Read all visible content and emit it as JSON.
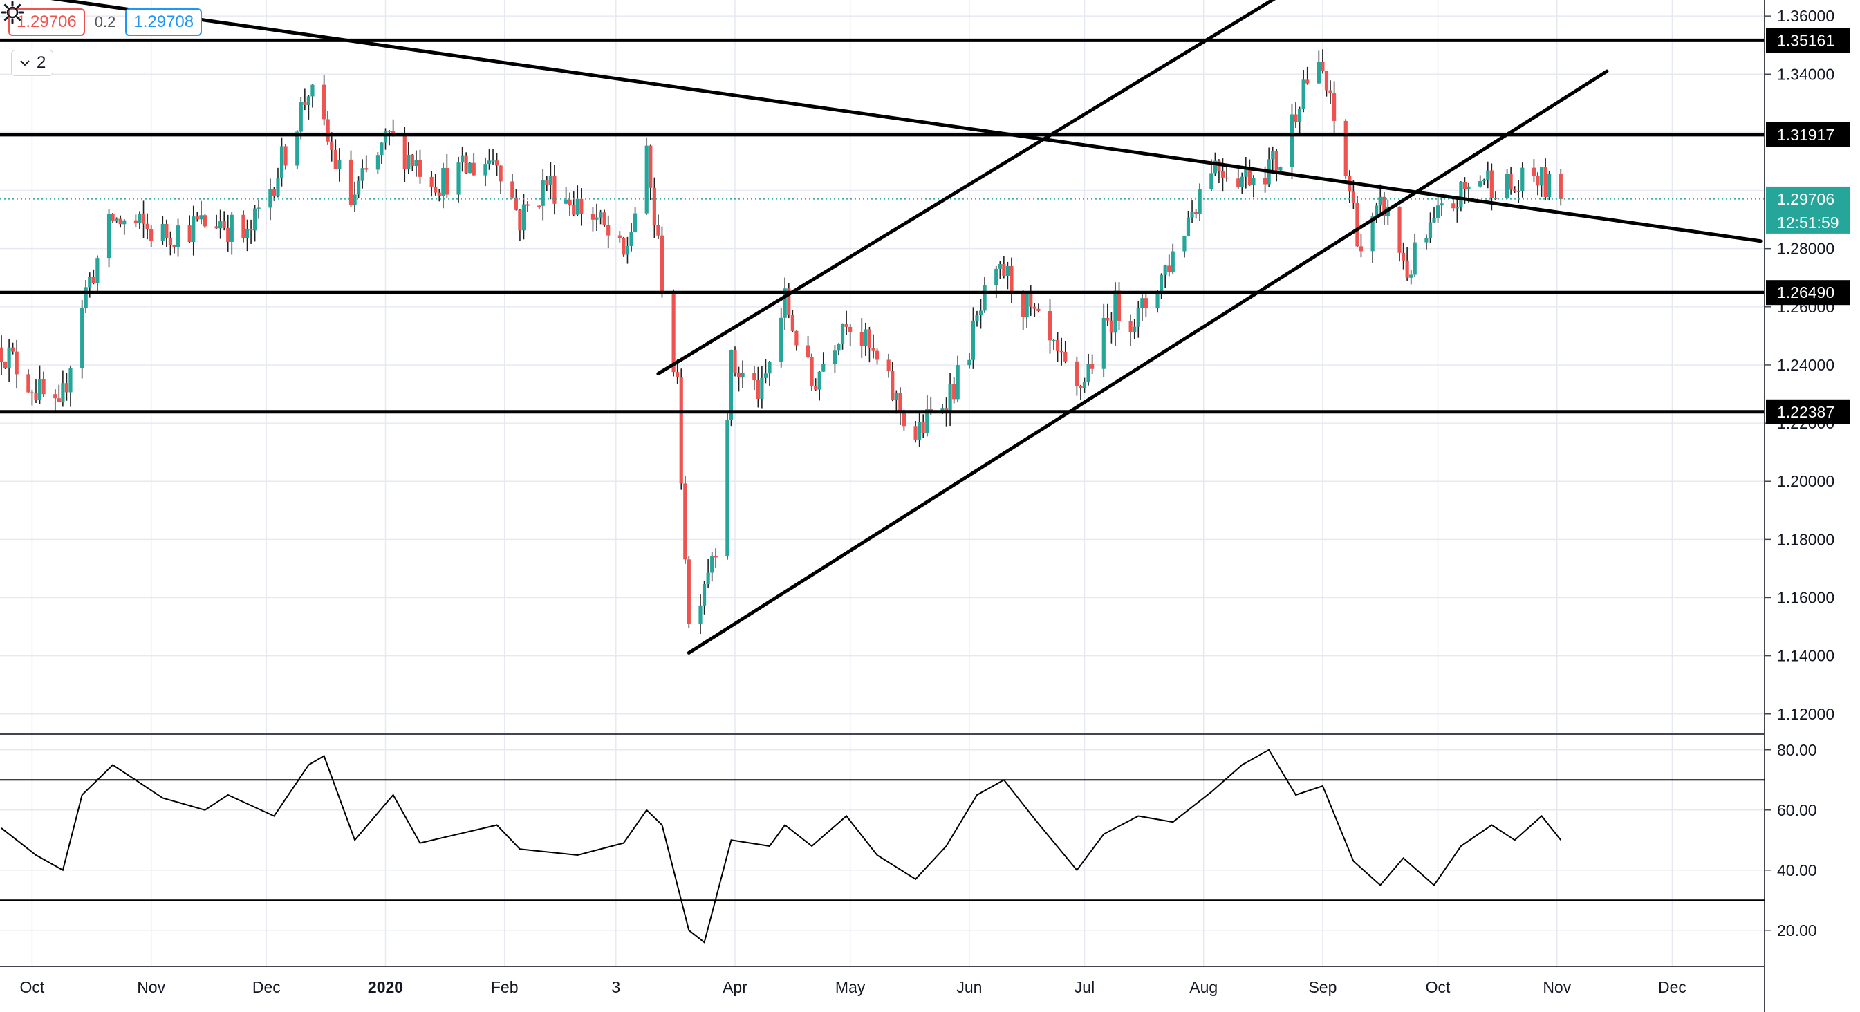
{
  "quote": {
    "bid": "1.29706",
    "spread": "0.2",
    "ask": "1.29708"
  },
  "indicator_toggle": {
    "label": "2"
  },
  "colors": {
    "up": "#26a69a",
    "down": "#ef5350",
    "line": "#000000",
    "grid": "#e6eaf0",
    "axis_text": "#131722",
    "current_price_bg": "#26a69a"
  },
  "icons": {
    "collapse": "chevron-down-icon",
    "settings": "gear-icon"
  },
  "chart_data": [
    {
      "type": "candlestick",
      "title": "",
      "x_labels": [
        "Oct",
        "Nov",
        "Dec",
        "2020",
        "Feb",
        "3",
        "Apr",
        "May",
        "Jun",
        "Jul",
        "Aug",
        "Sep",
        "Oct",
        "Nov",
        "Dec"
      ],
      "y_ticks": [
        "1.36000",
        "1.34000",
        "1.28000",
        "1.26000",
        "1.24000",
        "1.22000",
        "1.20000",
        "1.18000",
        "1.16000",
        "1.14000",
        "1.12000"
      ],
      "ylim": [
        1.114,
        1.3655
      ],
      "last_price": 1.29706,
      "countdown": "12:51:59",
      "horizontal_levels": [
        {
          "label": "1.35161",
          "value": 1.35161
        },
        {
          "label": "1.31917",
          "value": 1.31917
        },
        {
          "label": "1.26490",
          "value": 1.2649
        },
        {
          "label": "1.22387",
          "value": 1.22387
        }
      ],
      "trendlines": [
        {
          "name": "descending-trendline",
          "points": [
            [
              "2019-09-15",
              1.37
            ],
            [
              "2020-12-24",
              1.2826
            ]
          ]
        },
        {
          "name": "channel-lower-line",
          "points": [
            [
              "2020-03-20",
              1.141
            ],
            [
              "2020-11-14",
              1.341
            ]
          ]
        },
        {
          "name": "channel-upper-line",
          "points": [
            [
              "2020-03-12",
              1.237
            ],
            [
              "2020-08-22",
              1.368
            ]
          ]
        }
      ],
      "anchors": [
        [
          "2019-09-23",
          1.246
        ],
        [
          "2019-10-08",
          1.222
        ],
        [
          "2019-10-14",
          1.262
        ],
        [
          "2019-10-22",
          1.29
        ],
        [
          "2019-11-04",
          1.285
        ],
        [
          "2019-11-19",
          1.29
        ],
        [
          "2019-11-26",
          1.283
        ],
        [
          "2019-12-05",
          1.31
        ],
        [
          "2019-12-12",
          1.335
        ],
        [
          "2019-12-16",
          1.32
        ],
        [
          "2019-12-23",
          1.296
        ],
        [
          "2020-01-02",
          1.318
        ],
        [
          "2020-01-15",
          1.303
        ],
        [
          "2020-01-30",
          1.312
        ],
        [
          "2020-02-05",
          1.29
        ],
        [
          "2020-02-12",
          1.303
        ],
        [
          "2020-02-25",
          1.29
        ],
        [
          "2020-03-03",
          1.276
        ],
        [
          "2020-03-09",
          1.31
        ],
        [
          "2020-03-13",
          1.27
        ],
        [
          "2020-03-17",
          1.23
        ],
        [
          "2020-03-20",
          1.15
        ],
        [
          "2020-03-27",
          1.18
        ],
        [
          "2020-03-31",
          1.24
        ],
        [
          "2020-04-08",
          1.23
        ],
        [
          "2020-04-14",
          1.262
        ],
        [
          "2020-04-21",
          1.233
        ],
        [
          "2020-04-30",
          1.258
        ],
        [
          "2020-05-08",
          1.24
        ],
        [
          "2020-05-18",
          1.215
        ],
        [
          "2020-05-29",
          1.235
        ],
        [
          "2020-06-05",
          1.262
        ],
        [
          "2020-06-10",
          1.272
        ],
        [
          "2020-06-18",
          1.255
        ],
        [
          "2020-06-29",
          1.23
        ],
        [
          "2020-07-09",
          1.26
        ],
        [
          "2020-07-15",
          1.256
        ],
        [
          "2020-07-24",
          1.278
        ],
        [
          "2020-08-03",
          1.31
        ],
        [
          "2020-08-11",
          1.305
        ],
        [
          "2020-08-21",
          1.31
        ],
        [
          "2020-08-27",
          1.338
        ],
        [
          "2020-09-01",
          1.34
        ],
        [
          "2020-09-08",
          1.3
        ],
        [
          "2020-09-11",
          1.28
        ],
        [
          "2020-09-17",
          1.295
        ],
        [
          "2020-09-23",
          1.272
        ],
        [
          "2020-10-01",
          1.29
        ],
        [
          "2020-10-12",
          1.305
        ],
        [
          "2020-10-21",
          1.3
        ],
        [
          "2020-10-26",
          1.305
        ],
        [
          "2020-11-02",
          1.297
        ]
      ],
      "date_range": [
        "2019-09-23",
        "2020-11-02"
      ]
    },
    {
      "type": "line",
      "title": "",
      "y_ticks": [
        "80.00",
        "60.00",
        "40.00",
        "20.00"
      ],
      "ylim": [
        8,
        85
      ],
      "levels": [
        70,
        30
      ],
      "x": [
        "2019-09-23",
        "2019-10-02",
        "2019-10-09",
        "2019-10-14",
        "2019-10-22",
        "2019-11-04",
        "2019-11-15",
        "2019-11-21",
        "2019-12-03",
        "2019-12-12",
        "2019-12-16",
        "2019-12-24",
        "2020-01-03",
        "2020-01-10",
        "2020-01-30",
        "2020-02-05",
        "2020-02-20",
        "2020-03-03",
        "2020-03-09",
        "2020-03-13",
        "2020-03-20",
        "2020-03-24",
        "2020-03-31",
        "2020-04-10",
        "2020-04-14",
        "2020-04-21",
        "2020-04-30",
        "2020-05-08",
        "2020-05-18",
        "2020-05-26",
        "2020-06-03",
        "2020-06-10",
        "2020-06-18",
        "2020-06-29",
        "2020-07-06",
        "2020-07-15",
        "2020-07-24",
        "2020-08-03",
        "2020-08-11",
        "2020-08-18",
        "2020-08-25",
        "2020-09-01",
        "2020-09-09",
        "2020-09-16",
        "2020-09-22",
        "2020-09-30",
        "2020-10-07",
        "2020-10-15",
        "2020-10-21",
        "2020-10-28",
        "2020-11-02"
      ],
      "y": [
        54,
        45,
        40,
        65,
        75,
        64,
        60,
        65,
        58,
        75,
        78,
        50,
        65,
        49,
        55,
        47,
        45,
        49,
        60,
        55,
        20,
        16,
        50,
        48,
        55,
        48,
        58,
        45,
        37,
        48,
        65,
        70,
        57,
        40,
        52,
        58,
        56,
        66,
        75,
        80,
        65,
        68,
        43,
        35,
        44,
        35,
        48,
        55,
        50,
        58,
        50
      ]
    }
  ]
}
